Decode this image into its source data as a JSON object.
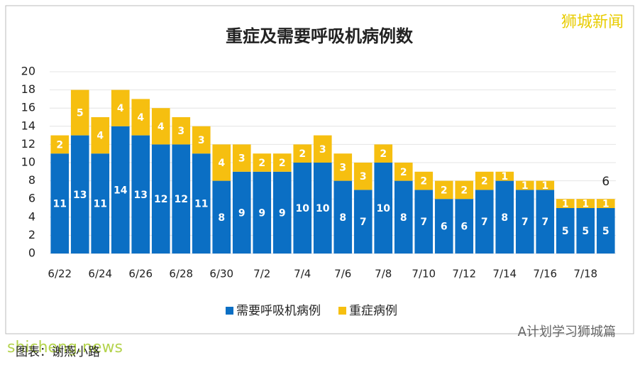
{
  "chart_data": {
    "type": "stacked_bar",
    "title": "重症及需要呼吸机病例数",
    "categories": [
      "6/22",
      null,
      "6/24",
      null,
      "6/26",
      null,
      "6/28",
      null,
      "6/30",
      null,
      "7/2",
      null,
      "7/4",
      null,
      "7/6",
      null,
      "7/8",
      null,
      "7/10",
      null,
      "7/12",
      null,
      "7/14",
      null,
      "7/16",
      null,
      "7/18",
      null
    ],
    "series": [
      {
        "name": "需要呼吸机病例",
        "color": "#0b6fc4",
        "values": [
          11,
          13,
          11,
          14,
          13,
          12,
          12,
          11,
          8,
          9,
          9,
          9,
          10,
          10,
          8,
          7,
          10,
          8,
          7,
          6,
          6,
          7,
          8,
          7,
          7,
          5,
          5,
          5
        ]
      },
      {
        "name": "重症病例",
        "color": "#f6bf10",
        "values": [
          2,
          5,
          4,
          4,
          4,
          4,
          3,
          3,
          4,
          3,
          2,
          2,
          2,
          3,
          3,
          3,
          2,
          2,
          2,
          2,
          2,
          2,
          1,
          1,
          1,
          1,
          1,
          1
        ]
      }
    ],
    "ylim": [
      0,
      20
    ],
    "yticks": [
      0,
      2,
      4,
      6,
      8,
      10,
      12,
      14,
      16,
      18,
      20
    ],
    "grid": true,
    "annotation": "6",
    "watermark_top": "狮城新闻",
    "watermark_source": "A计划学习狮城篇",
    "watermark_site": "shicheng.news",
    "caption": "图表：谢燕小路"
  }
}
